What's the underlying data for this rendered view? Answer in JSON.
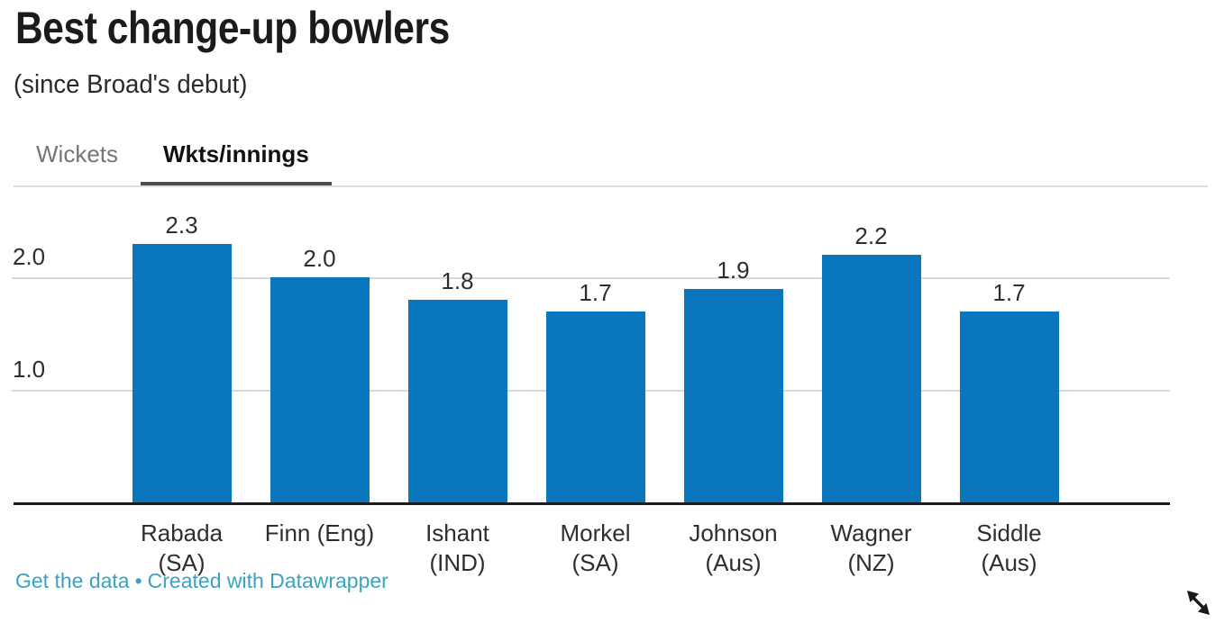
{
  "header": {
    "title": "Best change-up bowlers",
    "subtitle": "(since Broad's debut)"
  },
  "tabs": [
    {
      "label": "Wickets",
      "active": false
    },
    {
      "label": "Wkts/innings",
      "active": true
    }
  ],
  "chart_data": {
    "type": "bar",
    "title": "Best change-up bowlers",
    "subtitle": "(since Broad's debut)",
    "active_metric": "Wkts/innings",
    "categories": [
      "Rabada (SA)",
      "Finn (Eng)",
      "Ishant (IND)",
      "Morkel (SA)",
      "Johnson (Aus)",
      "Wagner (NZ)",
      "Siddle (Aus)"
    ],
    "category_lines": [
      [
        "Rabada",
        "(SA)"
      ],
      [
        "Finn (Eng)"
      ],
      [
        "Ishant",
        "(IND)"
      ],
      [
        "Morkel",
        "(SA)"
      ],
      [
        "Johnson",
        "(Aus)"
      ],
      [
        "Wagner",
        "(NZ)"
      ],
      [
        "Siddle",
        "(Aus)"
      ]
    ],
    "values": [
      2.3,
      2.0,
      1.8,
      1.7,
      1.9,
      2.2,
      1.7
    ],
    "value_labels": [
      "2.3",
      "2.0",
      "1.8",
      "1.7",
      "1.9",
      "2.2",
      "1.7"
    ],
    "yticks": [
      {
        "value": 1.0,
        "label": "1.0"
      },
      {
        "value": 2.0,
        "label": "2.0"
      }
    ],
    "ylim": [
      0,
      2.8
    ],
    "grid": true,
    "legend": "none",
    "xlabel": "",
    "ylabel": "",
    "bar_color": "#0a76be"
  },
  "footer": {
    "links": [
      {
        "label": "Get the data"
      },
      {
        "label": "Created with Datawrapper"
      }
    ],
    "separator": "•",
    "link_color": "#3aa3c3"
  },
  "colors": {
    "bar": "#0a76be",
    "gridline": "#d9d9d9",
    "baseline": "#1b1b1b",
    "tab_inactive": "#767676",
    "tab_active_underline": "#4d4d4d",
    "link": "#3aa3c3"
  },
  "cursor": {
    "icon": "resize-diagonal-cursor"
  }
}
